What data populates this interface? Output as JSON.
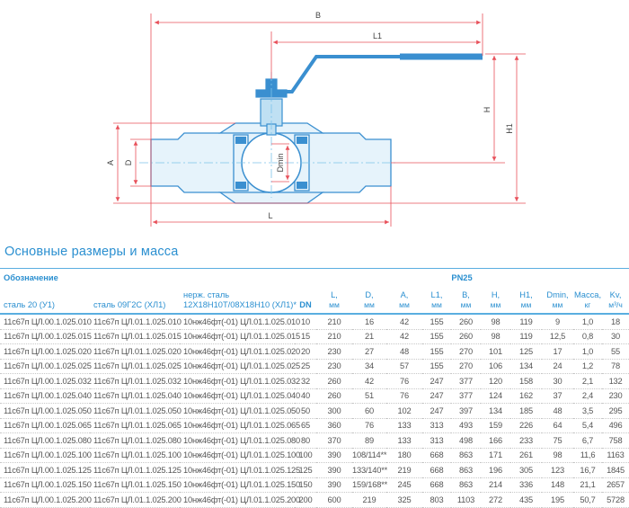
{
  "drawing": {
    "labels": {
      "B": "B",
      "L1": "L1",
      "H": "H",
      "H1": "H1",
      "A": "A",
      "D": "D",
      "Dmin": "Dmin",
      "L": "L"
    },
    "colors": {
      "valve": "#3a8fd0",
      "dimension": "#e8505a"
    }
  },
  "title": "Основные размеры и масса",
  "table": {
    "group_header": "Обозначение",
    "pressure_header": "PN25",
    "columns": [
      {
        "label": "сталь 20 (У1)",
        "unit": ""
      },
      {
        "label": "сталь 09Г2С (ХЛ1)",
        "unit": ""
      },
      {
        "label": "нерж. сталь",
        "unit": "12Х18Н10Т/08Х18Н10 (ХЛ1)*"
      },
      {
        "label": "DN",
        "unit": ""
      },
      {
        "label": "L,",
        "unit": "мм"
      },
      {
        "label": "D,",
        "unit": "мм"
      },
      {
        "label": "A,",
        "unit": "мм"
      },
      {
        "label": "L1,",
        "unit": "мм"
      },
      {
        "label": "B,",
        "unit": "мм"
      },
      {
        "label": "H,",
        "unit": "мм"
      },
      {
        "label": "H1,",
        "unit": "мм"
      },
      {
        "label": "Dmin,",
        "unit": "мм"
      },
      {
        "label": "Масса,",
        "unit": "кг"
      },
      {
        "label": "Kv,",
        "unit": "м³/ч"
      }
    ],
    "rows": [
      [
        "11с67п ЦЛ.00.1.025.010",
        "11с67п ЦЛ.01.1.025.010",
        "10нж46фт(-01) ЦЛ.01.1.025.010",
        "10",
        "210",
        "16",
        "42",
        "155",
        "260",
        "98",
        "119",
        "9",
        "1,0",
        "18"
      ],
      [
        "11с67п ЦЛ.00.1.025.015",
        "11с67п ЦЛ.01.1.025.015",
        "10нж46фт(-01) ЦЛ.01.1.025.015",
        "15",
        "210",
        "21",
        "42",
        "155",
        "260",
        "98",
        "119",
        "12,5",
        "0,8",
        "30"
      ],
      [
        "11с67п ЦЛ.00.1.025.020",
        "11с67п ЦЛ.01.1.025.020",
        "10нж46фт(-01) ЦЛ.01.1.025.020",
        "20",
        "230",
        "27",
        "48",
        "155",
        "270",
        "101",
        "125",
        "17",
        "1,0",
        "55"
      ],
      [
        "11с67п ЦЛ.00.1.025.025",
        "11с67п ЦЛ.01.1.025.025",
        "10нж46фт(-01) ЦЛ.01.1.025.025",
        "25",
        "230",
        "34",
        "57",
        "155",
        "270",
        "106",
        "134",
        "24",
        "1,2",
        "78"
      ],
      [
        "11с67п ЦЛ.00.1.025.032",
        "11с67п ЦЛ.01.1.025.032",
        "10нж46фт(-01) ЦЛ.01.1.025.032",
        "32",
        "260",
        "42",
        "76",
        "247",
        "377",
        "120",
        "158",
        "30",
        "2,1",
        "132"
      ],
      [
        "11с67п ЦЛ.00.1.025.040",
        "11с67п ЦЛ.01.1.025.040",
        "10нж46фт(-01) ЦЛ.01.1.025.040",
        "40",
        "260",
        "51",
        "76",
        "247",
        "377",
        "124",
        "162",
        "37",
        "2,4",
        "230"
      ],
      [
        "11с67п ЦЛ.00.1.025.050",
        "11с67п ЦЛ.01.1.025.050",
        "10нж46фт(-01) ЦЛ.01.1.025.050",
        "50",
        "300",
        "60",
        "102",
        "247",
        "397",
        "134",
        "185",
        "48",
        "3,5",
        "295"
      ],
      [
        "11с67п ЦЛ.00.1.025.065",
        "11с67п ЦЛ.01.1.025.065",
        "10нж46фт(-01) ЦЛ.01.1.025.065",
        "65",
        "360",
        "76",
        "133",
        "313",
        "493",
        "159",
        "226",
        "64",
        "5,4",
        "496"
      ],
      [
        "11с67п ЦЛ.00.1.025.080",
        "11с67п ЦЛ.01.1.025.080",
        "10нж46фт(-01) ЦЛ.01.1.025.080",
        "80",
        "370",
        "89",
        "133",
        "313",
        "498",
        "166",
        "233",
        "75",
        "6,7",
        "758"
      ],
      [
        "11с67п ЦЛ.00.1.025.100",
        "11с67п ЦЛ.01.1.025.100",
        "10нж46фт(-01) ЦЛ.01.1.025.100",
        "100",
        "390",
        "108/114**",
        "180",
        "668",
        "863",
        "171",
        "261",
        "98",
        "11,6",
        "1163"
      ],
      [
        "11с67п ЦЛ.00.1.025.125",
        "11с67п ЦЛ.01.1.025.125",
        "10нж46фт(-01) ЦЛ.01.1.025.125",
        "125",
        "390",
        "133/140**",
        "219",
        "668",
        "863",
        "196",
        "305",
        "123",
        "16,7",
        "1845"
      ],
      [
        "11с67п ЦЛ.00.1.025.150",
        "11с67п ЦЛ.01.1.025.150",
        "10нж46фт(-01) ЦЛ.01.1.025.150",
        "150",
        "390",
        "159/168**",
        "245",
        "668",
        "863",
        "214",
        "336",
        "148",
        "21,1",
        "2657"
      ],
      [
        "11с67п ЦЛ.00.1.025.200",
        "11с67п ЦЛ.01.1.025.200",
        "10нж46фт(-01) ЦЛ.01.1.025.200",
        "200",
        "600",
        "219",
        "325",
        "803",
        "1103",
        "272",
        "435",
        "195",
        "50,7",
        "5728"
      ]
    ]
  }
}
